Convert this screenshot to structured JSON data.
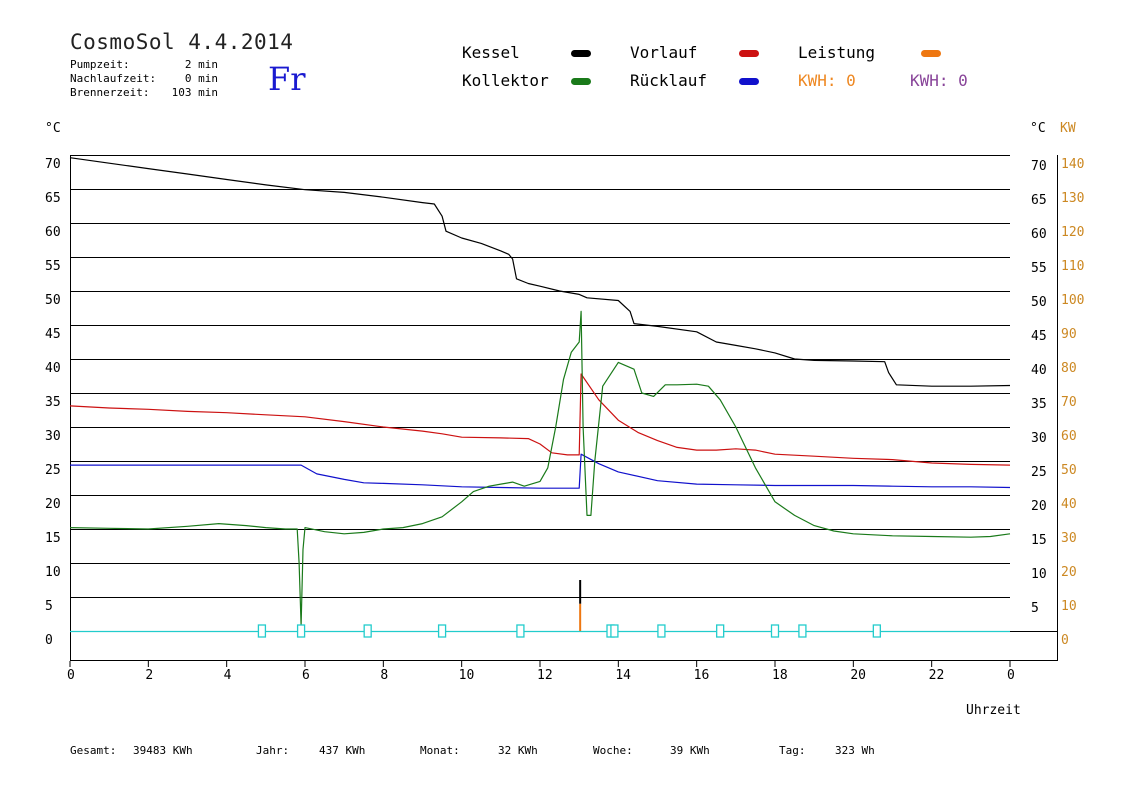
{
  "header": {
    "title": "CosmoSol 4.4.2014",
    "day": "Fr",
    "pumpzeit_label": "Pumpzeit:",
    "pumpzeit_value": "2 min",
    "nachlauf_label": "Nachlaufzeit:",
    "nachlauf_value": "0 min",
    "brenner_label": "Brennerzeit:",
    "brenner_value": "103 min"
  },
  "legend": {
    "kessel": "Kessel",
    "kollektor": "Kollektor",
    "vorlauf": "Vorlauf",
    "ruecklauf": "Rücklauf",
    "leistung": "Leistung",
    "kwh_orange": "KWH: 0",
    "kwh_purple": "KWH: 0"
  },
  "colors": {
    "kessel": "#000000",
    "kollektor": "#1a7a1a",
    "vorlauf": "#cc1111",
    "ruecklauf": "#1111cc",
    "leistung": "#ee7711",
    "kwh_purple": "#884499",
    "pump": "#22cccc",
    "right_axis": "#cc8822",
    "day": "#1a1ad0"
  },
  "footer": {
    "gesamt_label": "Gesamt:",
    "gesamt_value": "39483 KWh",
    "jahr_label": "Jahr:",
    "jahr_value": "437 KWh",
    "monat_label": "Monat:",
    "monat_value": "32 KWh",
    "woche_label": "Woche:",
    "woche_value": "39 KWh",
    "tag_label": "Tag:",
    "tag_value": "323 Wh"
  },
  "chart_data": {
    "type": "line",
    "xlabel": "Uhrzeit",
    "ylabel_left": "°C",
    "ylabel_right_1": "°C",
    "ylabel_right_2": "KW",
    "xlim": [
      0,
      24
    ],
    "ylim": [
      0,
      75
    ],
    "grid": true,
    "x_ticks": [
      "0",
      "2",
      "4",
      "6",
      "8",
      "10",
      "12",
      "14",
      "16",
      "18",
      "20",
      "22",
      "0"
    ],
    "y_ticks_left": [
      "0",
      "5",
      "10",
      "15",
      "20",
      "25",
      "30",
      "35",
      "40",
      "45",
      "50",
      "55",
      "60",
      "65",
      "70"
    ],
    "y_ticks_right": [
      "5",
      "10",
      "15",
      "20",
      "25",
      "30",
      "35",
      "40",
      "45",
      "50",
      "55",
      "60",
      "65",
      "70"
    ],
    "y_ticks_kw": [
      "0",
      "10",
      "20",
      "30",
      "40",
      "50",
      "60",
      "70",
      "80",
      "90",
      "100",
      "110",
      "120",
      "130",
      "140"
    ],
    "series": [
      {
        "name": "Kessel",
        "color": "#000000",
        "points": [
          [
            0,
            69.6
          ],
          [
            1,
            68.8
          ],
          [
            2,
            68.0
          ],
          [
            3,
            67.2
          ],
          [
            4,
            66.4
          ],
          [
            5,
            65.6
          ],
          [
            6,
            64.9
          ],
          [
            7,
            64.5
          ],
          [
            8,
            63.8
          ],
          [
            9,
            63.0
          ],
          [
            9.3,
            62.8
          ],
          [
            9.5,
            61
          ],
          [
            9.6,
            58.8
          ],
          [
            10,
            57.8
          ],
          [
            10.5,
            57.0
          ],
          [
            11,
            55.9
          ],
          [
            11.2,
            55.4
          ],
          [
            11.3,
            54.7
          ],
          [
            11.4,
            51.8
          ],
          [
            11.7,
            51.1
          ],
          [
            12,
            50.7
          ],
          [
            12.5,
            50.0
          ],
          [
            13,
            49.5
          ],
          [
            13.2,
            49.0
          ],
          [
            14,
            48.6
          ],
          [
            14.3,
            47
          ],
          [
            14.4,
            45.2
          ],
          [
            15,
            44.8
          ],
          [
            16,
            44.0
          ],
          [
            16.5,
            42.5
          ],
          [
            17,
            42.0
          ],
          [
            17.5,
            41.5
          ],
          [
            18,
            40.9
          ],
          [
            18.5,
            40.0
          ],
          [
            19,
            39.8
          ],
          [
            20,
            39.7
          ],
          [
            20.8,
            39.6
          ],
          [
            20.9,
            38
          ],
          [
            21.1,
            36.2
          ],
          [
            22,
            36.0
          ],
          [
            23,
            36.0
          ],
          [
            24,
            36.1
          ]
        ]
      },
      {
        "name": "Vorlauf",
        "color": "#cc1111",
        "points": [
          [
            0,
            33.1
          ],
          [
            1,
            32.8
          ],
          [
            2,
            32.6
          ],
          [
            3,
            32.3
          ],
          [
            4,
            32.1
          ],
          [
            5,
            31.8
          ],
          [
            6,
            31.5
          ],
          [
            7,
            30.8
          ],
          [
            8,
            30.0
          ],
          [
            9,
            29.4
          ],
          [
            9.5,
            29.0
          ],
          [
            10,
            28.5
          ],
          [
            11,
            28.4
          ],
          [
            11.7,
            28.3
          ],
          [
            12,
            27.5
          ],
          [
            12.3,
            26.2
          ],
          [
            12.7,
            25.9
          ],
          [
            13,
            25.9
          ],
          [
            13.05,
            37.8
          ],
          [
            13.5,
            34.0
          ],
          [
            14,
            31.0
          ],
          [
            14.5,
            29.2
          ],
          [
            15,
            28.0
          ],
          [
            15.5,
            27.0
          ],
          [
            16,
            26.6
          ],
          [
            16.5,
            26.6
          ],
          [
            17,
            26.8
          ],
          [
            17.5,
            26.6
          ],
          [
            18,
            26.0
          ],
          [
            19,
            25.7
          ],
          [
            20,
            25.4
          ],
          [
            21,
            25.2
          ],
          [
            22,
            24.7
          ],
          [
            23,
            24.5
          ],
          [
            24,
            24.4
          ]
        ]
      },
      {
        "name": "Rücklauf",
        "color": "#1111cc",
        "points": [
          [
            0,
            24.4
          ],
          [
            1,
            24.4
          ],
          [
            2,
            24.4
          ],
          [
            3,
            24.4
          ],
          [
            4,
            24.4
          ],
          [
            5,
            24.4
          ],
          [
            5.9,
            24.4
          ],
          [
            6.3,
            23.1
          ],
          [
            7,
            22.3
          ],
          [
            7.5,
            21.8
          ],
          [
            8,
            21.7
          ],
          [
            9,
            21.5
          ],
          [
            10,
            21.2
          ],
          [
            11,
            21.1
          ],
          [
            12,
            21.0
          ],
          [
            13,
            21.0
          ],
          [
            13.05,
            26.0
          ],
          [
            13.5,
            24.6
          ],
          [
            14,
            23.4
          ],
          [
            15,
            22.1
          ],
          [
            16,
            21.6
          ],
          [
            17,
            21.5
          ],
          [
            18,
            21.4
          ],
          [
            19,
            21.4
          ],
          [
            20,
            21.4
          ],
          [
            21,
            21.3
          ],
          [
            22,
            21.2
          ],
          [
            23,
            21.2
          ],
          [
            24,
            21.1
          ]
        ]
      },
      {
        "name": "Kollektor",
        "color": "#1a7a1a",
        "points": [
          [
            0,
            15.2
          ],
          [
            1,
            15.1
          ],
          [
            2,
            15.0
          ],
          [
            3,
            15.4
          ],
          [
            3.8,
            15.8
          ],
          [
            4.5,
            15.5
          ],
          [
            5,
            15.2
          ],
          [
            5.5,
            15.0
          ],
          [
            5.8,
            15.0
          ],
          [
            5.85,
            10
          ],
          [
            5.9,
            0.8
          ],
          [
            5.95,
            12
          ],
          [
            6.0,
            15.2
          ],
          [
            6.5,
            14.6
          ],
          [
            7,
            14.3
          ],
          [
            7.5,
            14.5
          ],
          [
            8,
            15.0
          ],
          [
            8.5,
            15.2
          ],
          [
            9,
            15.8
          ],
          [
            9.5,
            16.8
          ],
          [
            10,
            19.0
          ],
          [
            10.3,
            20.5
          ],
          [
            10.7,
            21.3
          ],
          [
            11,
            21.6
          ],
          [
            11.3,
            21.9
          ],
          [
            11.6,
            21.3
          ],
          [
            12,
            22.0
          ],
          [
            12.2,
            24
          ],
          [
            12.4,
            30
          ],
          [
            12.6,
            37
          ],
          [
            12.8,
            41
          ],
          [
            13.0,
            42.5
          ],
          [
            13.05,
            47
          ],
          [
            13.1,
            30
          ],
          [
            13.2,
            17
          ],
          [
            13.3,
            17
          ],
          [
            13.4,
            25
          ],
          [
            13.6,
            36
          ],
          [
            14,
            39.5
          ],
          [
            14.4,
            38.5
          ],
          [
            14.6,
            35
          ],
          [
            14.9,
            34.5
          ],
          [
            15.2,
            36.2
          ],
          [
            15.5,
            36.2
          ],
          [
            16,
            36.3
          ],
          [
            16.3,
            36.0
          ],
          [
            16.6,
            34
          ],
          [
            17,
            30
          ],
          [
            17.5,
            24
          ],
          [
            18,
            19
          ],
          [
            18.5,
            17
          ],
          [
            19,
            15.5
          ],
          [
            19.5,
            14.7
          ],
          [
            20,
            14.3
          ],
          [
            21,
            14.0
          ],
          [
            22,
            13.9
          ],
          [
            23,
            13.8
          ],
          [
            23.5,
            13.9
          ],
          [
            24,
            14.3
          ]
        ]
      }
    ],
    "leistung_spike": {
      "x": 13.0,
      "value_kw": 2
    },
    "kessel_spike": {
      "x": 13.0,
      "value": 7.5
    },
    "pump_markers": [
      4.9,
      5.9,
      7.6,
      9.5,
      11.5,
      13.8,
      13.9,
      15.1,
      16.6,
      18.0,
      18.7,
      20.6
    ]
  }
}
